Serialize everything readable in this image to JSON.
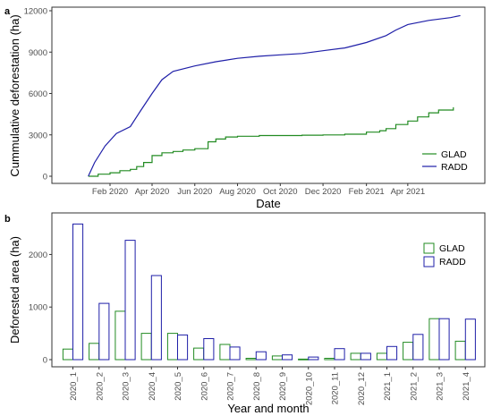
{
  "colors": {
    "glad": "#228B22",
    "radd": "#1F1FA8",
    "frame": "#333333",
    "tick": "#333333"
  },
  "chart_data": [
    {
      "panel": "a",
      "type": "line",
      "xlabel": "Date",
      "ylabel": "Cummulative deforestation (ha)",
      "ylim": [
        0,
        12000
      ],
      "yticks": [
        0,
        3000,
        6000,
        9000,
        12000
      ],
      "xlim": [
        "2019-11-10",
        "2021-07-20"
      ],
      "xticks": [
        {
          "date": "2020-02-01",
          "label": "Feb 2020"
        },
        {
          "date": "2020-04-01",
          "label": "Apr 2020"
        },
        {
          "date": "2020-06-01",
          "label": "Jun 2020"
        },
        {
          "date": "2020-08-01",
          "label": "Aug 2020"
        },
        {
          "date": "2020-10-01",
          "label": "Oct 2020"
        },
        {
          "date": "2020-12-01",
          "label": "Dec 2020"
        },
        {
          "date": "2021-02-01",
          "label": "Feb 2021"
        },
        {
          "date": "2021-04-01",
          "label": "Apr 2021"
        }
      ],
      "grid": false,
      "legend": "bottom-right",
      "series": [
        {
          "name": "GLAD",
          "color": "#228B22",
          "step": true,
          "x": [
            "2020-01-01",
            "2020-01-15",
            "2020-02-01",
            "2020-02-15",
            "2020-03-01",
            "2020-03-10",
            "2020-03-20",
            "2020-04-01",
            "2020-04-15",
            "2020-05-01",
            "2020-05-15",
            "2020-06-01",
            "2020-06-20",
            "2020-07-01",
            "2020-07-15",
            "2020-08-01",
            "2020-09-01",
            "2020-10-01",
            "2020-11-01",
            "2020-12-01",
            "2021-01-01",
            "2021-02-01",
            "2021-02-20",
            "2021-03-01",
            "2021-03-15",
            "2021-04-01",
            "2021-04-15",
            "2021-05-01",
            "2021-05-15",
            "2021-06-05"
          ],
          "y": [
            0,
            150,
            250,
            400,
            500,
            700,
            1000,
            1500,
            1700,
            1800,
            1900,
            2000,
            2500,
            2700,
            2850,
            2900,
            2950,
            2950,
            2980,
            3000,
            3050,
            3200,
            3300,
            3450,
            3750,
            4000,
            4300,
            4600,
            4800,
            5000
          ]
        },
        {
          "name": "RADD",
          "color": "#1F1FA8",
          "step": false,
          "x": [
            "2020-01-01",
            "2020-01-10",
            "2020-01-25",
            "2020-02-10",
            "2020-03-01",
            "2020-03-15",
            "2020-04-01",
            "2020-04-15",
            "2020-05-01",
            "2020-06-01",
            "2020-07-01",
            "2020-08-01",
            "2020-09-01",
            "2020-10-01",
            "2020-11-01",
            "2020-12-01",
            "2021-01-01",
            "2021-02-01",
            "2021-03-01",
            "2021-03-15",
            "2021-04-01",
            "2021-05-01",
            "2021-06-01",
            "2021-06-15"
          ],
          "y": [
            0,
            1000,
            2200,
            3100,
            3600,
            4700,
            6000,
            7000,
            7600,
            8000,
            8300,
            8550,
            8700,
            8800,
            8900,
            9100,
            9300,
            9700,
            10200,
            10600,
            11000,
            11300,
            11500,
            11650
          ]
        }
      ]
    },
    {
      "panel": "b",
      "type": "bar",
      "xlabel": "Year and month",
      "ylabel": "Deforested area (ha)",
      "ylim": [
        0,
        2700
      ],
      "yticks": [
        0,
        1000,
        2000
      ],
      "grid": false,
      "legend": "top-right",
      "categories": [
        "2020_1",
        "2020_2",
        "2020_3",
        "2020_4",
        "2020_5",
        "2020_6",
        "2020_7",
        "2020_8",
        "2020_9",
        "2020_10",
        "2020_11",
        "2020_12",
        "2021_1",
        "2021_2",
        "2021_3",
        "2021_4"
      ],
      "series": [
        {
          "name": "GLAD",
          "color": "#228B22",
          "values": [
            200,
            310,
            920,
            500,
            500,
            220,
            290,
            25,
            70,
            10,
            25,
            120,
            120,
            330,
            780,
            350
          ]
        },
        {
          "name": "RADD",
          "color": "#1F1FA8",
          "values": [
            2580,
            1070,
            2270,
            1600,
            470,
            400,
            240,
            150,
            90,
            50,
            210,
            120,
            250,
            480,
            780,
            770
          ]
        }
      ]
    }
  ]
}
